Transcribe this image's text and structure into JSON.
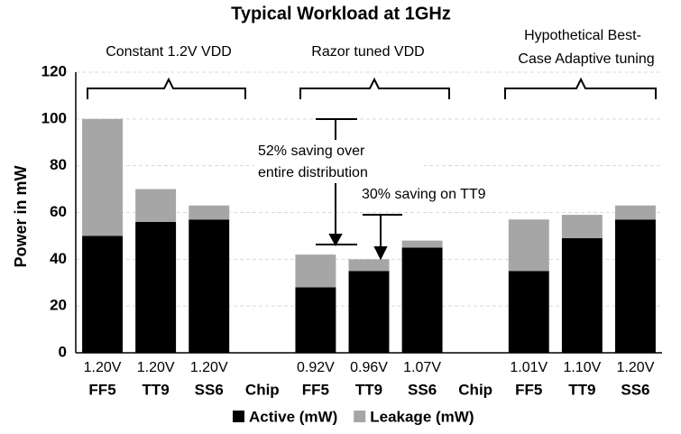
{
  "chart_data": {
    "type": "stacked_bar",
    "title": "Typical Workload at 1GHz",
    "ylabel": "Power in mW",
    "categories": [
      "FF5",
      "TT9",
      "SS6",
      "Chip",
      "FF5",
      "TT9",
      "SS6",
      "Chip",
      "FF5",
      "TT9",
      "SS6"
    ],
    "voltage_labels": [
      "1.20V",
      "1.20V",
      "1.20V",
      null,
      "0.92V",
      "0.96V",
      "1.07V",
      null,
      "1.01V",
      "1.10V",
      "1.20V"
    ],
    "series": [
      {
        "name": "Active (mW)",
        "color": "#000000",
        "values": [
          50,
          56,
          57,
          null,
          28,
          35,
          45,
          null,
          35,
          49,
          57
        ]
      },
      {
        "name": "Leakage (mW)",
        "color": "#a6a6a6",
        "values": [
          50,
          14,
          6,
          null,
          14,
          5,
          3,
          null,
          22,
          10,
          6
        ]
      }
    ],
    "ylim": [
      0,
      120
    ],
    "yticks": [
      0,
      20,
      40,
      60,
      80,
      100,
      120
    ],
    "grid": true,
    "group_labels": [
      [
        "Constant 1.2V VDD"
      ],
      [
        "Razor tuned VDD"
      ],
      [
        "Hypothetical Best-",
        "Case Adaptive tuning"
      ]
    ],
    "annotations": [
      [
        "52% saving over",
        "entire distribution"
      ],
      [
        "30% saving on TT9"
      ]
    ],
    "legend": "bottom"
  }
}
